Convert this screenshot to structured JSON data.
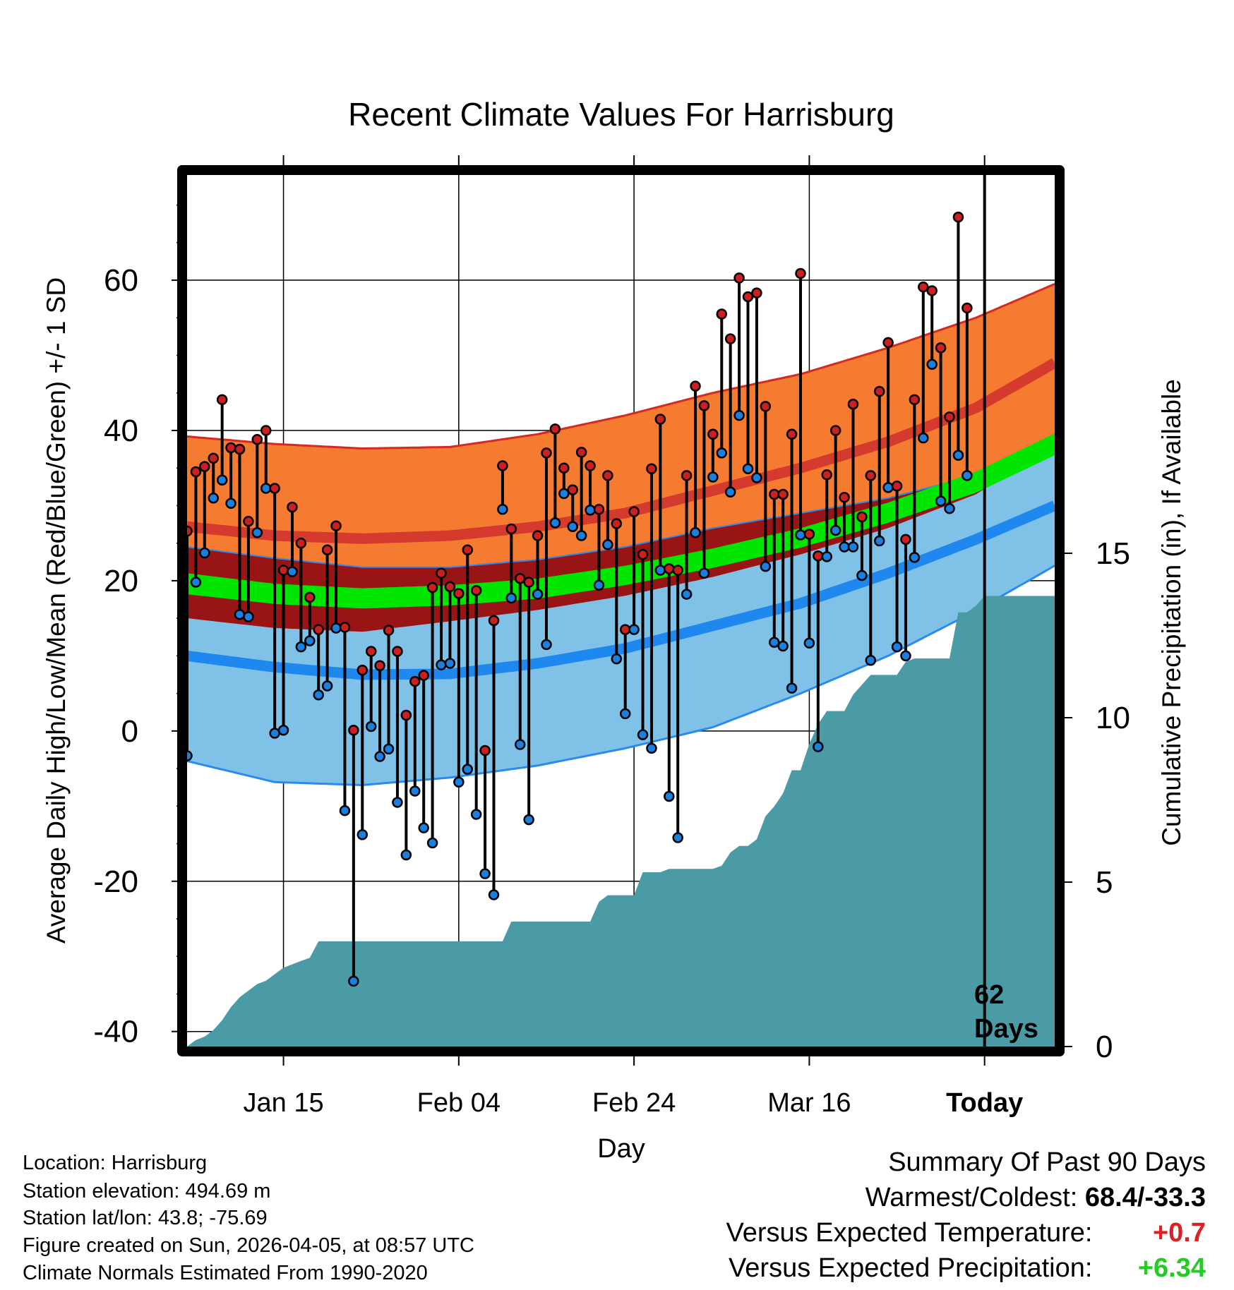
{
  "chart_data": {
    "type": "line",
    "title": "Recent Climate Values For Harrisburg",
    "xlabel": "Day",
    "ylabel": "Average Daily High/Low/Mean (Red/Blue/Green) +/- 1 SD",
    "y2label": "Cumulative Precipitation (in), If Available",
    "ylim": [
      -42,
      74
    ],
    "y2lim": [
      0,
      26.5
    ],
    "xlim": [
      0,
      99
    ],
    "x_ticks": [
      {
        "x": 11,
        "label": "Jan 15"
      },
      {
        "x": 31,
        "label": "Feb 04"
      },
      {
        "x": 51,
        "label": "Feb 24"
      },
      {
        "x": 71,
        "label": "Mar 16"
      },
      {
        "x": 91,
        "label": "Today"
      }
    ],
    "y_ticks": [
      -40,
      -20,
      0,
      20,
      40,
      60
    ],
    "y2_ticks": [
      0,
      5,
      10,
      15
    ],
    "today_x": 91,
    "today_label": "62",
    "today_label2": "Days",
    "colors": {
      "high_band": "#f47b30",
      "high_mean_line": "#d43a2e",
      "high_edge": "#d42a22",
      "overlap": "#991414",
      "mean_line": "#00e600",
      "low_band": "#80c1e8",
      "low_mean_line": "#1e88ee",
      "low_edge": "#2a8af0",
      "precip": "#4a9ba6",
      "high_marker": "#cc1f1f",
      "low_marker": "#1b7fe0"
    },
    "normals": {
      "x": [
        0,
        10,
        20,
        30,
        40,
        50,
        60,
        70,
        80,
        90,
        99
      ],
      "high_plus_sd": [
        39.2,
        38.2,
        37.6,
        37.8,
        39.5,
        42.0,
        45.0,
        47.5,
        51.0,
        55.0,
        59.5
      ],
      "high_mean": [
        27.2,
        26.0,
        25.6,
        26.0,
        27.2,
        29.0,
        32.0,
        35.0,
        38.5,
        43.0,
        49.0
      ],
      "high_minus_sd": [
        24.5,
        23.0,
        21.8,
        21.8,
        22.8,
        24.5,
        27.0,
        29.0,
        31.0,
        34.0,
        38.0
      ],
      "mean_upper": [
        21.0,
        19.6,
        19.0,
        19.4,
        20.3,
        22.0,
        24.3,
        27.0,
        30.4,
        34.5,
        39.6
      ],
      "mean_lower": [
        18.2,
        16.9,
        16.3,
        16.7,
        17.6,
        19.4,
        21.7,
        24.4,
        27.7,
        31.7,
        36.7
      ],
      "low_plus_sd": [
        15.0,
        13.7,
        13.2,
        14.6,
        16.1,
        18.0,
        20.5,
        23.5,
        27.0,
        31.5,
        38.0
      ],
      "low_mean": [
        10.0,
        8.5,
        7.5,
        7.6,
        9.0,
        11.0,
        14.0,
        17.0,
        21.0,
        25.5,
        30.0
      ],
      "low_minus_sd": [
        -4.0,
        -6.8,
        -7.2,
        -6.2,
        -4.6,
        -2.3,
        0.5,
        5.0,
        10.0,
        16.0,
        22.0
      ]
    },
    "daily_high": [
      26.6,
      34.5,
      35.2,
      36.3,
      44.1,
      37.7,
      37.5,
      27.9,
      38.8,
      40.0,
      32.3,
      21.4,
      29.8,
      25.0,
      17.8,
      13.5,
      24.1,
      27.3,
      13.8,
      0.1,
      8.1,
      10.6,
      8.7,
      13.4,
      10.6,
      2.1,
      6.6,
      7.4,
      19.1,
      21.0,
      19.2,
      18.3,
      24.1,
      18.7,
      -2.6,
      14.7,
      35.3,
      26.9,
      20.3,
      19.8,
      26.0,
      37.0,
      40.2,
      35.0,
      32.1,
      37.1,
      35.3,
      29.5,
      34.0,
      27.6,
      13.5,
      29.2,
      23.5,
      34.9,
      41.5,
      21.6,
      21.4,
      34.0,
      45.9,
      43.3,
      39.5,
      55.5,
      52.2,
      60.3,
      57.8,
      58.3,
      43.2,
      31.5,
      31.5,
      39.5,
      60.9,
      26.2,
      23.3,
      34.1,
      40.0,
      31.1,
      43.5,
      28.5,
      34.0,
      45.2,
      51.7,
      32.6,
      25.5,
      44.1,
      59.1,
      58.6,
      51.0,
      41.8,
      68.4,
      56.3
    ],
    "daily_low": [
      -3.3,
      19.8,
      23.7,
      31.0,
      33.4,
      30.3,
      15.5,
      15.2,
      26.4,
      32.3,
      -0.3,
      0.1,
      21.2,
      11.2,
      12.0,
      4.8,
      6.0,
      13.7,
      -10.6,
      -33.3,
      -13.8,
      0.6,
      -3.4,
      -2.4,
      -9.5,
      -16.5,
      -8.0,
      -12.9,
      -14.9,
      8.8,
      9.0,
      -6.8,
      -5.1,
      -11.1,
      -19.0,
      -21.8,
      29.5,
      17.7,
      -1.8,
      -11.8,
      18.2,
      11.5,
      27.7,
      31.6,
      27.2,
      26.0,
      29.4,
      19.4,
      24.8,
      9.6,
      2.3,
      13.5,
      -0.5,
      -2.3,
      21.4,
      -8.7,
      -14.2,
      18.2,
      26.4,
      21.0,
      33.8,
      37.0,
      31.8,
      42.0,
      34.9,
      33.7,
      21.9,
      11.8,
      11.3,
      5.7,
      26.1,
      11.7,
      -2.1,
      23.2,
      26.7,
      24.5,
      24.5,
      20.7,
      9.4,
      25.3,
      32.4,
      11.2,
      10.0,
      23.1,
      39.0,
      48.8,
      30.6,
      29.6,
      36.7,
      34.0
    ],
    "cumulative_precip": [
      0.0,
      0.2,
      0.3,
      0.5,
      0.8,
      1.2,
      1.5,
      1.7,
      1.9,
      2.0,
      2.2,
      2.4,
      2.5,
      2.6,
      2.7,
      3.2,
      3.2,
      3.2,
      3.2,
      3.2,
      3.2,
      3.2,
      3.2,
      3.2,
      3.2,
      3.2,
      3.2,
      3.2,
      3.2,
      3.2,
      3.2,
      3.2,
      3.2,
      3.2,
      3.2,
      3.2,
      3.2,
      3.8,
      3.8,
      3.8,
      3.8,
      3.8,
      3.8,
      3.8,
      3.8,
      3.8,
      3.8,
      4.4,
      4.6,
      4.6,
      4.6,
      4.6,
      5.3,
      5.3,
      5.3,
      5.4,
      5.4,
      5.4,
      5.4,
      5.4,
      5.4,
      5.5,
      5.9,
      6.1,
      6.1,
      6.3,
      7.0,
      7.3,
      7.7,
      8.4,
      8.4,
      9.2,
      9.8,
      10.2,
      10.2,
      10.2,
      10.7,
      11.0,
      11.3,
      11.3,
      11.3,
      11.3,
      11.7,
      11.8,
      11.8,
      11.8,
      11.8,
      11.8,
      13.2,
      13.2,
      13.4,
      13.7,
      13.7,
      13.7,
      13.7,
      13.7,
      13.7,
      13.7,
      13.7,
      13.7,
      13.7
    ]
  },
  "footer": {
    "location": "Location: Harrisburg",
    "elevation": "Station elevation: 494.69 m",
    "latlon": "Station lat/lon: 43.8; -75.69",
    "created": "Figure created on Sun, 2026-04-05, at 08:57 UTC",
    "normals": "Climate Normals Estimated From 1990-2020"
  },
  "summary": {
    "title": "Summary Of Past 90 Days",
    "warmest_label": "Warmest/Coldest:",
    "warmest_value": "68.4/-33.3",
    "temp_label": "Versus Expected Temperature:",
    "temp_value": "+0.7",
    "temp_color": "#e02020",
    "precip_label": "Versus Expected Precipitation:",
    "precip_value": "+6.34",
    "precip_color": "#22cc22"
  }
}
